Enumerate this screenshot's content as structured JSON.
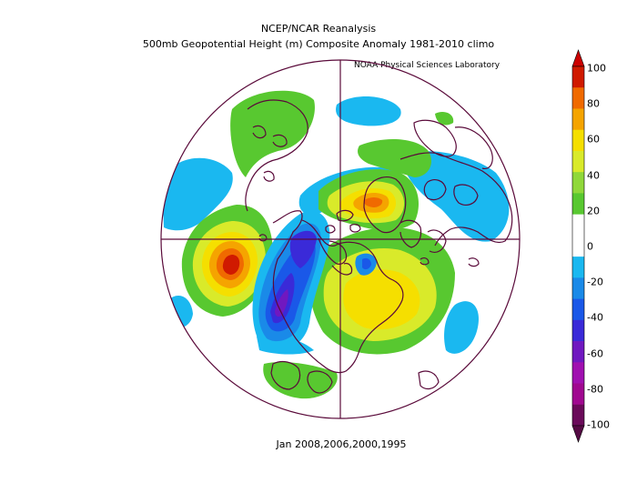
{
  "header": {
    "title": "NCEP/NCAR Reanalysis",
    "subtitle": "500mb Geopotential Height (m) Composite Anomaly 1981-2010 climo",
    "credit": "NOAA Physical Sciences Laboratory"
  },
  "footer": {
    "caption": "Jan 2008,2006,2000,1995"
  },
  "colorbar": {
    "ticks": [
      "100",
      "80",
      "60",
      "40",
      "20",
      "0",
      "-20",
      "-40",
      "-60",
      "-80",
      "-100"
    ],
    "colors": [
      "#d01a00",
      "#f06a00",
      "#f5a400",
      "#f5df00",
      "#d9ea2a",
      "#90d83a",
      "#58c830",
      "#ffffff",
      "#ffffff",
      "#1ab8f0",
      "#1a8ae8",
      "#1a58e8",
      "#3a2ad8",
      "#7018c0",
      "#a010b0",
      "#a00890",
      "#6a0a5a"
    ],
    "top_color": "#cc0000",
    "bottom_color": "#550a44"
  },
  "map": {
    "projection": "north polar stereographic",
    "outline_color": "#5a0a3a",
    "features": [
      {
        "name": "positive-anomaly-north-pacific",
        "peak_value": 100
      },
      {
        "name": "negative-anomaly-western-north-america",
        "peak_value": -70
      },
      {
        "name": "positive-anomaly-eastern-north-america",
        "peak_value": 50
      },
      {
        "name": "positive-anomaly-greenland-arctic",
        "peak_value": 60
      }
    ]
  }
}
